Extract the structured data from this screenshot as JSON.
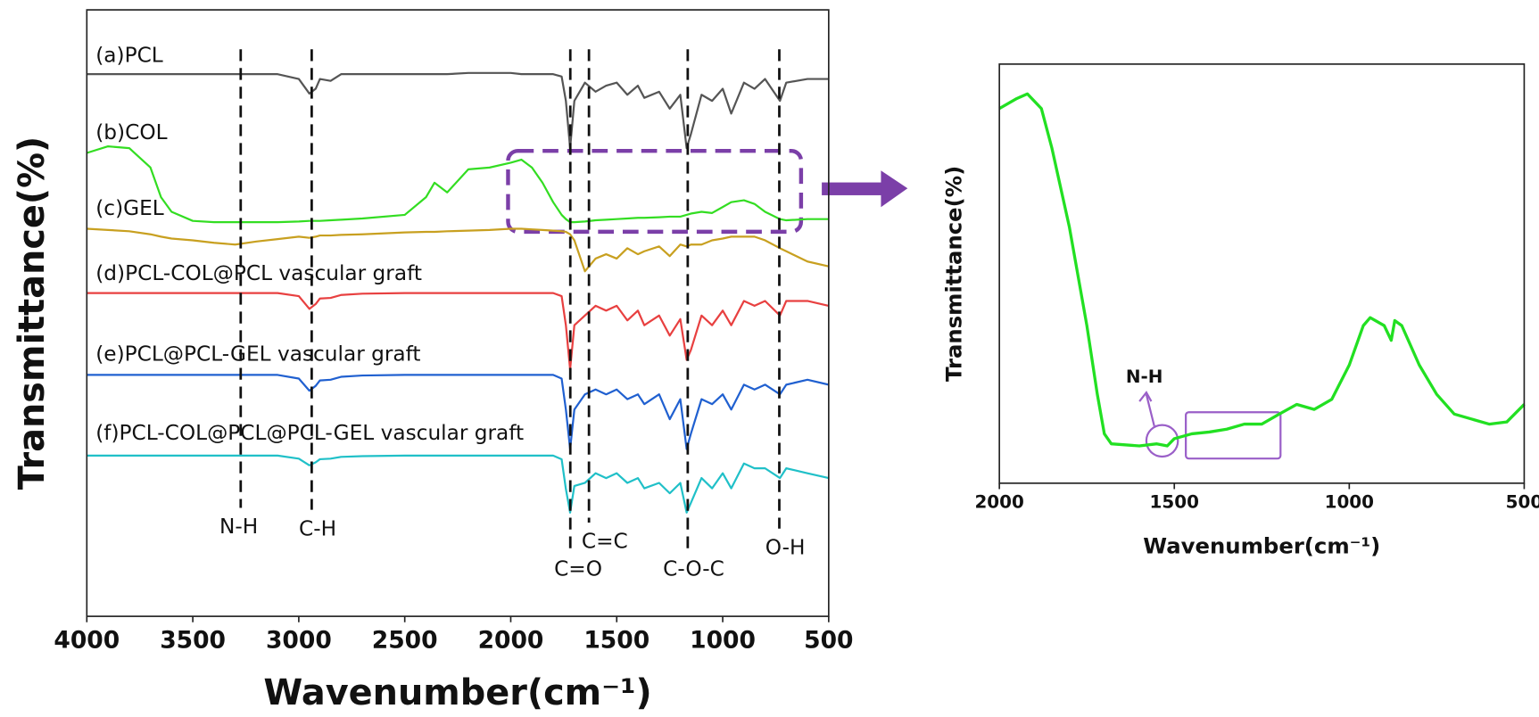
{
  "chart_data": [
    {
      "type": "line",
      "y_label": "Transmittance(%)",
      "x_label": "Wavenumber(cm⁻¹)",
      "xlim": [
        4000,
        500
      ],
      "xticks": [
        4000,
        3500,
        3000,
        2500,
        2000,
        1500,
        1000,
        500
      ],
      "ylim": [
        0,
        100
      ],
      "x": [
        4000,
        3900,
        3800,
        3700,
        3650,
        3600,
        3500,
        3400,
        3300,
        3200,
        3100,
        3000,
        2950,
        2920,
        2900,
        2850,
        2800,
        2700,
        2500,
        2400,
        2360,
        2300,
        2200,
        2100,
        2000,
        1950,
        1900,
        1850,
        1800,
        1760,
        1740,
        1720,
        1700,
        1650,
        1600,
        1550,
        1500,
        1450,
        1400,
        1370,
        1300,
        1250,
        1200,
        1170,
        1150,
        1100,
        1050,
        1000,
        960,
        900,
        850,
        800,
        730,
        700,
        600,
        500
      ],
      "series": [
        {
          "name": "(a)PCL",
          "color": "#555555",
          "values": [
            89.4,
            89.4,
            89.4,
            89.4,
            89.4,
            89.4,
            89.4,
            89.4,
            89.4,
            89.4,
            89.4,
            88.6,
            86.2,
            87.0,
            88.6,
            88.3,
            89.4,
            89.4,
            89.4,
            89.4,
            89.4,
            89.4,
            89.6,
            89.6,
            89.6,
            89.4,
            89.4,
            89.4,
            89.4,
            89.0,
            85.0,
            77.2,
            85.0,
            88.0,
            86.5,
            87.5,
            88.0,
            86.0,
            87.5,
            85.5,
            86.5,
            83.7,
            86.0,
            77.2,
            79.5,
            86.0,
            85.0,
            87.0,
            82.9,
            88.0,
            87.0,
            88.6,
            85.0,
            88.0,
            88.6,
            88.6
          ]
        },
        {
          "name": "(b)COL",
          "color": "#33dd22",
          "values": [
            76.4,
            77.5,
            77.2,
            74.0,
            69.1,
            66.7,
            65.2,
            65.0,
            65.0,
            65.0,
            65.0,
            65.1,
            65.2,
            65.2,
            65.2,
            65.3,
            65.4,
            65.6,
            66.2,
            69.1,
            71.5,
            69.9,
            73.7,
            74.0,
            74.8,
            75.3,
            74.0,
            71.5,
            68.3,
            66.2,
            65.5,
            65.0,
            65.0,
            65.1,
            65.3,
            65.4,
            65.5,
            65.6,
            65.7,
            65.7,
            65.8,
            65.9,
            65.9,
            66.2,
            66.4,
            66.7,
            66.5,
            67.5,
            68.3,
            68.6,
            68.0,
            66.7,
            65.5,
            65.3,
            65.5,
            65.5
          ]
        },
        {
          "name": "(c)GEL",
          "color": "#c8a020",
          "values": [
            63.9,
            63.7,
            63.5,
            63.0,
            62.6,
            62.3,
            62.0,
            61.6,
            61.3,
            61.8,
            62.2,
            62.6,
            62.4,
            62.6,
            62.8,
            62.8,
            62.9,
            63.0,
            63.3,
            63.4,
            63.4,
            63.5,
            63.6,
            63.7,
            63.9,
            63.9,
            63.8,
            63.7,
            63.6,
            63.5,
            63.4,
            63.0,
            62.0,
            56.9,
            59.0,
            59.7,
            59.0,
            60.7,
            59.7,
            60.2,
            61.0,
            59.4,
            61.3,
            61.0,
            61.3,
            61.3,
            62.0,
            62.3,
            62.6,
            62.6,
            62.6,
            62.0,
            60.7,
            60.2,
            58.5,
            57.7
          ]
        },
        {
          "name": "(d)PCL-COL@PCL vascular graft",
          "color": "#e84040",
          "values": [
            53.3,
            53.3,
            53.3,
            53.3,
            53.3,
            53.3,
            53.3,
            53.3,
            53.3,
            53.3,
            53.3,
            52.8,
            50.7,
            51.5,
            52.4,
            52.5,
            53.0,
            53.2,
            53.3,
            53.3,
            53.3,
            53.3,
            53.3,
            53.3,
            53.3,
            53.3,
            53.3,
            53.3,
            53.3,
            52.8,
            48.0,
            40.7,
            48.0,
            49.6,
            51.2,
            50.4,
            51.2,
            48.8,
            50.4,
            48.0,
            49.6,
            46.3,
            49.0,
            42.3,
            43.9,
            49.6,
            48.0,
            50.4,
            48.0,
            52.0,
            51.2,
            52.0,
            49.6,
            52.0,
            52.0,
            51.2
          ]
        },
        {
          "name": "(e)PCL@PCL-GEL vascular graft",
          "color": "#2060d0",
          "values": [
            39.8,
            39.8,
            39.8,
            39.8,
            39.8,
            39.8,
            39.8,
            39.8,
            39.8,
            39.8,
            39.8,
            39.2,
            37.2,
            38.0,
            38.9,
            39.0,
            39.5,
            39.7,
            39.8,
            39.8,
            39.8,
            39.8,
            39.8,
            39.8,
            39.8,
            39.8,
            39.8,
            39.8,
            39.8,
            39.2,
            34.1,
            27.6,
            34.1,
            36.6,
            37.4,
            36.6,
            37.4,
            35.8,
            36.6,
            35.0,
            36.6,
            32.5,
            35.8,
            27.6,
            30.1,
            35.8,
            35.0,
            36.6,
            34.1,
            38.2,
            37.4,
            38.2,
            36.6,
            38.2,
            39.0,
            38.2
          ]
        },
        {
          "name": "(f)PCL-COL@PCL@PCL-GEL vascular graft",
          "color": "#20c0c8",
          "values": [
            26.5,
            26.5,
            26.5,
            26.5,
            26.5,
            26.5,
            26.5,
            26.5,
            26.5,
            26.5,
            26.5,
            26.0,
            24.9,
            25.4,
            25.9,
            26.0,
            26.3,
            26.4,
            26.5,
            26.5,
            26.5,
            26.5,
            26.5,
            26.5,
            26.5,
            26.5,
            26.5,
            26.5,
            26.5,
            25.9,
            21.0,
            17.1,
            21.5,
            22.0,
            23.6,
            22.8,
            23.6,
            22.0,
            22.8,
            21.1,
            22.0,
            20.3,
            22.0,
            17.1,
            18.7,
            22.8,
            21.1,
            23.6,
            21.1,
            25.2,
            24.4,
            24.4,
            22.8,
            24.4,
            23.6,
            22.8
          ]
        }
      ],
      "annotations": [
        {
          "x": 3274,
          "label": "N-H"
        },
        {
          "x": 2939,
          "label": "C-H"
        },
        {
          "x": 1719,
          "label": "C=O"
        },
        {
          "x": 1631,
          "label": "C=C"
        },
        {
          "x": 1165,
          "label": "C-O-C"
        },
        {
          "x": 733,
          "label": "O-H"
        }
      ]
    },
    {
      "type": "line",
      "y_label": "Transmittance(%)",
      "x_label": "Wavenumber(cm⁻¹)",
      "xlim": [
        2000,
        500
      ],
      "xticks": [
        2000,
        1500,
        1000,
        500
      ],
      "ylim": [
        0,
        100
      ],
      "x": [
        2000,
        1950,
        1920,
        1880,
        1850,
        1800,
        1750,
        1720,
        1700,
        1680,
        1600,
        1550,
        1520,
        1500,
        1450,
        1400,
        1350,
        1300,
        1250,
        1200,
        1150,
        1100,
        1050,
        1000,
        960,
        940,
        900,
        880,
        870,
        850,
        800,
        750,
        700,
        650,
        600,
        550,
        500
      ],
      "series": [
        {
          "name": "(b)COL",
          "color": "#22e022",
          "values": [
            89.4,
            91.8,
            92.9,
            89.4,
            80.0,
            61.2,
            37.6,
            21.2,
            11.8,
            9.4,
            8.9,
            9.4,
            8.9,
            10.6,
            11.8,
            12.2,
            12.9,
            14.1,
            14.1,
            16.5,
            18.8,
            17.6,
            20.0,
            28.2,
            37.6,
            39.5,
            37.6,
            34.1,
            38.8,
            37.6,
            28.2,
            21.2,
            16.5,
            15.3,
            14.1,
            14.6,
            18.8
          ]
        }
      ],
      "annotations": [
        {
          "label": "N-H"
        }
      ]
    }
  ]
}
